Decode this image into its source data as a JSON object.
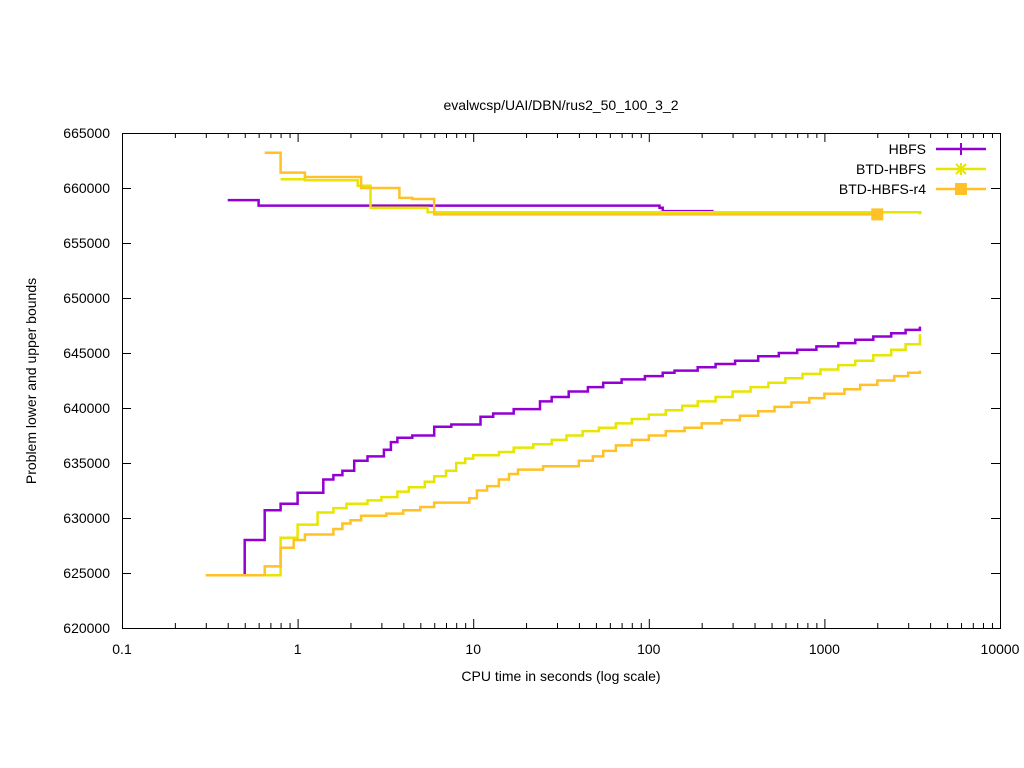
{
  "chart_data": {
    "type": "line",
    "title": "evalwcsp/UAI/DBN/rus2_50_100_3_2",
    "xlabel": "CPU time in seconds (log scale)",
    "ylabel": "Problem lower and upper bounds",
    "xscale": "log",
    "xlim": [
      0.1,
      10000
    ],
    "ylim": [
      620000,
      665000
    ],
    "xticks": [
      0.1,
      1,
      10,
      100,
      1000,
      10000
    ],
    "xtick_labels": [
      "0.1",
      "1",
      "10",
      "100",
      "1000",
      "10000"
    ],
    "yticks": [
      620000,
      625000,
      630000,
      635000,
      640000,
      645000,
      650000,
      655000,
      660000,
      665000
    ],
    "ytick_labels": [
      "620000",
      "625000",
      "630000",
      "635000",
      "640000",
      "645000",
      "650000",
      "655000",
      "660000",
      "665000"
    ],
    "grid": false,
    "legend_position": "top-right",
    "series": [
      {
        "name": "HBFS",
        "color": "#9400d3",
        "marker": "plus",
        "upper": [
          [
            0.4,
            658900
          ],
          [
            0.6,
            658900
          ],
          [
            0.6,
            658400
          ],
          [
            115,
            658400
          ],
          [
            115,
            658200
          ],
          [
            120,
            658200
          ],
          [
            120,
            657900
          ],
          [
            230,
            657900
          ],
          [
            230,
            657800
          ],
          [
            3500,
            657800
          ],
          [
            3500,
            657700
          ]
        ],
        "lower": [
          [
            0.5,
            624800
          ],
          [
            0.5,
            628000
          ],
          [
            0.65,
            628000
          ],
          [
            0.65,
            630700
          ],
          [
            0.8,
            630700
          ],
          [
            0.8,
            631300
          ],
          [
            1.0,
            631300
          ],
          [
            1.0,
            632300
          ],
          [
            1.4,
            632300
          ],
          [
            1.4,
            633500
          ],
          [
            1.6,
            633500
          ],
          [
            1.6,
            633900
          ],
          [
            1.8,
            633900
          ],
          [
            1.8,
            634300
          ],
          [
            2.1,
            634300
          ],
          [
            2.1,
            635200
          ],
          [
            2.5,
            635200
          ],
          [
            2.5,
            635600
          ],
          [
            3.1,
            635600
          ],
          [
            3.1,
            636200
          ],
          [
            3.4,
            636200
          ],
          [
            3.4,
            636900
          ],
          [
            3.7,
            636900
          ],
          [
            3.7,
            637300
          ],
          [
            4.5,
            637300
          ],
          [
            4.5,
            637500
          ],
          [
            6.0,
            637500
          ],
          [
            6.0,
            638300
          ],
          [
            7.5,
            638300
          ],
          [
            7.5,
            638500
          ],
          [
            11,
            638500
          ],
          [
            11,
            639200
          ],
          [
            13,
            639200
          ],
          [
            13,
            639500
          ],
          [
            17,
            639500
          ],
          [
            17,
            639900
          ],
          [
            24,
            639900
          ],
          [
            24,
            640600
          ],
          [
            28,
            640600
          ],
          [
            28,
            641000
          ],
          [
            35,
            641000
          ],
          [
            35,
            641500
          ],
          [
            45,
            641500
          ],
          [
            45,
            641900
          ],
          [
            55,
            641900
          ],
          [
            55,
            642300
          ],
          [
            70,
            642300
          ],
          [
            70,
            642600
          ],
          [
            95,
            642600
          ],
          [
            95,
            642900
          ],
          [
            120,
            642900
          ],
          [
            120,
            643200
          ],
          [
            140,
            643200
          ],
          [
            140,
            643400
          ],
          [
            190,
            643400
          ],
          [
            190,
            643700
          ],
          [
            240,
            643700
          ],
          [
            240,
            644000
          ],
          [
            310,
            644000
          ],
          [
            310,
            644300
          ],
          [
            420,
            644300
          ],
          [
            420,
            644700
          ],
          [
            550,
            644700
          ],
          [
            550,
            645000
          ],
          [
            700,
            645000
          ],
          [
            700,
            645300
          ],
          [
            900,
            645300
          ],
          [
            900,
            645600
          ],
          [
            1200,
            645600
          ],
          [
            1200,
            645900
          ],
          [
            1500,
            645900
          ],
          [
            1500,
            646200
          ],
          [
            1900,
            646200
          ],
          [
            1900,
            646500
          ],
          [
            2400,
            646500
          ],
          [
            2400,
            646800
          ],
          [
            2900,
            646800
          ],
          [
            2900,
            647100
          ],
          [
            3500,
            647100
          ],
          [
            3500,
            647400
          ]
        ]
      },
      {
        "name": "BTD-HBFS",
        "color": "#e6e600",
        "marker": "star",
        "upper": [
          [
            0.8,
            660800
          ],
          [
            1.1,
            660800
          ],
          [
            1.1,
            660700
          ],
          [
            2.2,
            660700
          ],
          [
            2.2,
            660200
          ],
          [
            2.6,
            660200
          ],
          [
            2.6,
            658200
          ],
          [
            5.5,
            658200
          ],
          [
            5.5,
            657800
          ],
          [
            3500,
            657800
          ],
          [
            3500,
            657600
          ]
        ],
        "lower": [
          [
            0.3,
            624800
          ],
          [
            0.8,
            624800
          ],
          [
            0.8,
            628200
          ],
          [
            1.0,
            628200
          ],
          [
            1.0,
            629400
          ],
          [
            1.3,
            629400
          ],
          [
            1.3,
            630500
          ],
          [
            1.6,
            630500
          ],
          [
            1.6,
            630900
          ],
          [
            1.9,
            630900
          ],
          [
            1.9,
            631300
          ],
          [
            2.5,
            631300
          ],
          [
            2.5,
            631600
          ],
          [
            3.0,
            631600
          ],
          [
            3.0,
            631900
          ],
          [
            3.7,
            631900
          ],
          [
            3.7,
            632400
          ],
          [
            4.3,
            632400
          ],
          [
            4.3,
            632800
          ],
          [
            5.3,
            632800
          ],
          [
            5.3,
            633300
          ],
          [
            6.0,
            633300
          ],
          [
            6.0,
            633800
          ],
          [
            7.0,
            633800
          ],
          [
            7.0,
            634300
          ],
          [
            8.0,
            634300
          ],
          [
            8.0,
            635000
          ],
          [
            9.0,
            635000
          ],
          [
            9.0,
            635400
          ],
          [
            10,
            635400
          ],
          [
            10,
            635700
          ],
          [
            14,
            635700
          ],
          [
            14,
            636000
          ],
          [
            17,
            636000
          ],
          [
            17,
            636400
          ],
          [
            22,
            636400
          ],
          [
            22,
            636700
          ],
          [
            28,
            636700
          ],
          [
            28,
            637100
          ],
          [
            34,
            637100
          ],
          [
            34,
            637500
          ],
          [
            42,
            637500
          ],
          [
            42,
            637900
          ],
          [
            52,
            637900
          ],
          [
            52,
            638200
          ],
          [
            65,
            638200
          ],
          [
            65,
            638600
          ],
          [
            80,
            638600
          ],
          [
            80,
            639000
          ],
          [
            100,
            639000
          ],
          [
            100,
            639400
          ],
          [
            125,
            639400
          ],
          [
            125,
            639800
          ],
          [
            155,
            639800
          ],
          [
            155,
            640200
          ],
          [
            190,
            640200
          ],
          [
            190,
            640600
          ],
          [
            240,
            640600
          ],
          [
            240,
            641000
          ],
          [
            300,
            641000
          ],
          [
            300,
            641500
          ],
          [
            380,
            641500
          ],
          [
            380,
            641900
          ],
          [
            480,
            641900
          ],
          [
            480,
            642300
          ],
          [
            600,
            642300
          ],
          [
            600,
            642700
          ],
          [
            750,
            642700
          ],
          [
            750,
            643100
          ],
          [
            950,
            643100
          ],
          [
            950,
            643500
          ],
          [
            1200,
            643500
          ],
          [
            1200,
            643900
          ],
          [
            1500,
            643900
          ],
          [
            1500,
            644300
          ],
          [
            1900,
            644300
          ],
          [
            1900,
            644800
          ],
          [
            2400,
            644800
          ],
          [
            2400,
            645300
          ],
          [
            2900,
            645300
          ],
          [
            2900,
            645800
          ],
          [
            3500,
            645800
          ],
          [
            3500,
            646700
          ]
        ]
      },
      {
        "name": "BTD-HBFS-r4",
        "color": "#ffc125",
        "marker": "square",
        "upper": [
          [
            0.65,
            663200
          ],
          [
            0.8,
            663200
          ],
          [
            0.8,
            661400
          ],
          [
            1.1,
            661400
          ],
          [
            1.1,
            661000
          ],
          [
            2.3,
            661000
          ],
          [
            2.3,
            660000
          ],
          [
            3.8,
            660000
          ],
          [
            3.8,
            659100
          ],
          [
            4.5,
            659100
          ],
          [
            4.5,
            659000
          ],
          [
            6.0,
            659000
          ],
          [
            6.0,
            657600
          ],
          [
            2000,
            657600
          ]
        ],
        "lower": [
          [
            0.3,
            624800
          ],
          [
            0.65,
            624800
          ],
          [
            0.65,
            625600
          ],
          [
            0.8,
            625600
          ],
          [
            0.8,
            627300
          ],
          [
            0.95,
            627300
          ],
          [
            0.95,
            628000
          ],
          [
            1.1,
            628000
          ],
          [
            1.1,
            628500
          ],
          [
            1.6,
            628500
          ],
          [
            1.6,
            629000
          ],
          [
            1.8,
            629000
          ],
          [
            1.8,
            629500
          ],
          [
            2.0,
            629500
          ],
          [
            2.0,
            629800
          ],
          [
            2.3,
            629800
          ],
          [
            2.3,
            630200
          ],
          [
            3.2,
            630200
          ],
          [
            3.2,
            630400
          ],
          [
            4.0,
            630400
          ],
          [
            4.0,
            630700
          ],
          [
            5.0,
            630700
          ],
          [
            5.0,
            631000
          ],
          [
            6.0,
            631000
          ],
          [
            6.0,
            631400
          ],
          [
            9.5,
            631400
          ],
          [
            9.5,
            631800
          ],
          [
            10.5,
            631800
          ],
          [
            10.5,
            632500
          ],
          [
            12,
            632500
          ],
          [
            12,
            632900
          ],
          [
            14,
            632900
          ],
          [
            14,
            633500
          ],
          [
            16,
            633500
          ],
          [
            16,
            634000
          ],
          [
            18,
            634000
          ],
          [
            18,
            634400
          ],
          [
            25,
            634400
          ],
          [
            25,
            634700
          ],
          [
            40,
            634700
          ],
          [
            40,
            635200
          ],
          [
            48,
            635200
          ],
          [
            48,
            635600
          ],
          [
            55,
            635600
          ],
          [
            55,
            636100
          ],
          [
            65,
            636100
          ],
          [
            65,
            636600
          ],
          [
            80,
            636600
          ],
          [
            80,
            637100
          ],
          [
            100,
            637100
          ],
          [
            100,
            637500
          ],
          [
            125,
            637500
          ],
          [
            125,
            637900
          ],
          [
            160,
            637900
          ],
          [
            160,
            638200
          ],
          [
            200,
            638200
          ],
          [
            200,
            638600
          ],
          [
            260,
            638600
          ],
          [
            260,
            638900
          ],
          [
            330,
            638900
          ],
          [
            330,
            639300
          ],
          [
            420,
            639300
          ],
          [
            420,
            639700
          ],
          [
            520,
            639700
          ],
          [
            520,
            640100
          ],
          [
            650,
            640100
          ],
          [
            650,
            640500
          ],
          [
            820,
            640500
          ],
          [
            820,
            640900
          ],
          [
            1000,
            640900
          ],
          [
            1000,
            641300
          ],
          [
            1300,
            641300
          ],
          [
            1300,
            641700
          ],
          [
            1600,
            641700
          ],
          [
            1600,
            642100
          ],
          [
            2000,
            642100
          ],
          [
            2000,
            642500
          ],
          [
            2500,
            642500
          ],
          [
            2500,
            642900
          ],
          [
            3000,
            642900
          ],
          [
            3000,
            643200
          ],
          [
            3500,
            643200
          ],
          [
            3500,
            643400
          ]
        ]
      }
    ]
  }
}
